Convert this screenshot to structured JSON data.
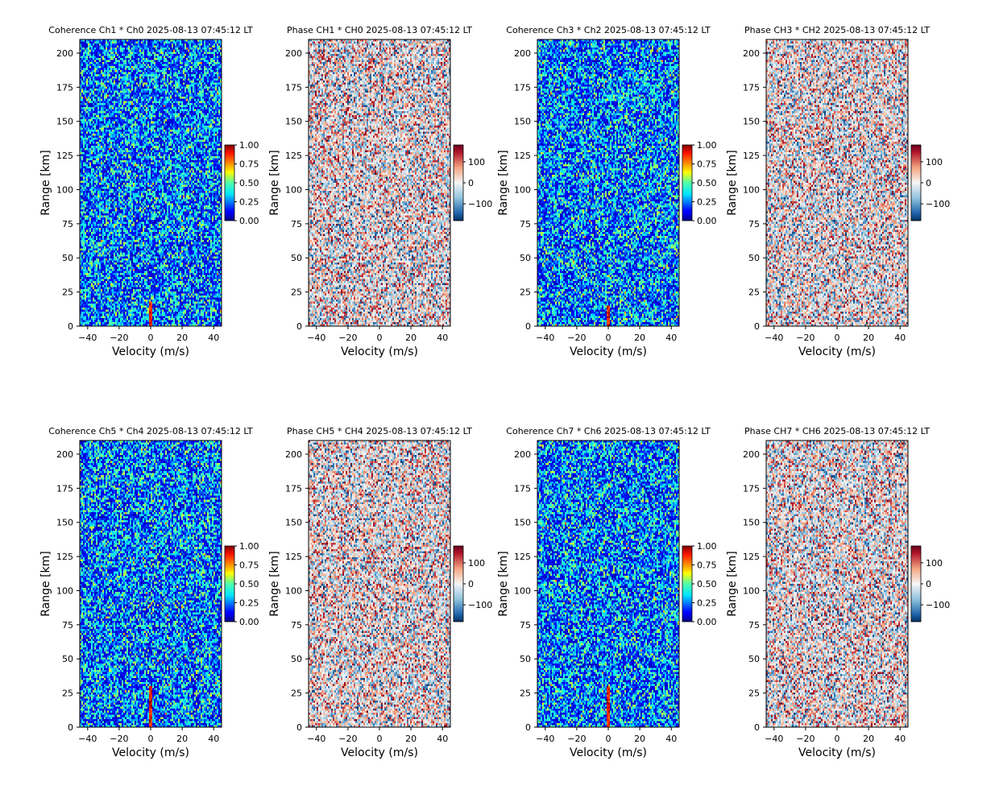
{
  "chart_data": [
    {
      "type": "heatmap",
      "kind": "coherence",
      "title": "Coherence Ch1 * Ch0 2025-08-13 07:45:12 LT",
      "xlabel": "Velocity (m/s)",
      "ylabel": "Range [km]",
      "xlim": [
        -45,
        45
      ],
      "ylim": [
        0,
        210
      ],
      "xticks": [
        "−40",
        "−20",
        "0",
        "20",
        "40"
      ],
      "yticks": [
        "0",
        "25",
        "50",
        "75",
        "100",
        "125",
        "150",
        "175",
        "200"
      ],
      "colorbar": {
        "range": [
          0,
          1
        ],
        "ticks": [
          "0.00",
          "0.25",
          "0.50",
          "0.75",
          "1.00"
        ],
        "colormap": "jet"
      },
      "peak_near_zero_velocity_km": [
        0,
        18
      ],
      "seed": 11
    },
    {
      "type": "heatmap",
      "kind": "phase",
      "title": "Phase CH1 * CH0 2025-08-13 07:45:12 LT",
      "xlabel": "Velocity (m/s)",
      "ylabel": "Range [km]",
      "xlim": [
        -45,
        45
      ],
      "ylim": [
        0,
        210
      ],
      "xticks": [
        "−40",
        "−20",
        "0",
        "20",
        "40"
      ],
      "yticks": [
        "0",
        "25",
        "50",
        "75",
        "100",
        "125",
        "150",
        "175",
        "200"
      ],
      "colorbar": {
        "range": [
          -180,
          180
        ],
        "ticks": [
          "−100",
          "0",
          "100"
        ],
        "colormap": "RdBu_r"
      },
      "seed": 23
    },
    {
      "type": "heatmap",
      "kind": "coherence",
      "title": "Coherence Ch3 * Ch2 2025-08-13 07:45:12 LT",
      "xlabel": "Velocity (m/s)",
      "ylabel": "Range [km]",
      "xlim": [
        -45,
        45
      ],
      "ylim": [
        0,
        210
      ],
      "xticks": [
        "−40",
        "−20",
        "0",
        "20",
        "40"
      ],
      "yticks": [
        "0",
        "25",
        "50",
        "75",
        "100",
        "125",
        "150",
        "175",
        "200"
      ],
      "colorbar": {
        "range": [
          0,
          1
        ],
        "ticks": [
          "0.00",
          "0.25",
          "0.50",
          "0.75",
          "1.00"
        ],
        "colormap": "jet"
      },
      "peak_near_zero_velocity_km": [
        0,
        15
      ],
      "seed": 37
    },
    {
      "type": "heatmap",
      "kind": "phase",
      "title": "Phase CH3 * CH2 2025-08-13 07:45:12 LT",
      "xlabel": "Velocity (m/s)",
      "ylabel": "Range [km]",
      "xlim": [
        -45,
        45
      ],
      "ylim": [
        0,
        210
      ],
      "xticks": [
        "−40",
        "−20",
        "0",
        "20",
        "40"
      ],
      "yticks": [
        "0",
        "25",
        "50",
        "75",
        "100",
        "125",
        "150",
        "175",
        "200"
      ],
      "colorbar": {
        "range": [
          -180,
          180
        ],
        "ticks": [
          "−100",
          "0",
          "100"
        ],
        "colormap": "RdBu_r"
      },
      "seed": 41
    },
    {
      "type": "heatmap",
      "kind": "coherence",
      "title": "Coherence Ch5 * Ch4 2025-08-13 07:45:12 LT",
      "xlabel": "Velocity (m/s)",
      "ylabel": "Range [km]",
      "xlim": [
        -45,
        45
      ],
      "ylim": [
        0,
        210
      ],
      "xticks": [
        "−40",
        "−20",
        "0",
        "20",
        "40"
      ],
      "yticks": [
        "0",
        "25",
        "50",
        "75",
        "100",
        "125",
        "150",
        "175",
        "200"
      ],
      "colorbar": {
        "range": [
          0,
          1
        ],
        "ticks": [
          "0.00",
          "0.25",
          "0.50",
          "0.75",
          "1.00"
        ],
        "colormap": "jet"
      },
      "peak_near_zero_velocity_km": [
        0,
        30
      ],
      "seed": 53
    },
    {
      "type": "heatmap",
      "kind": "phase",
      "title": "Phase CH5 * CH4 2025-08-13 07:45:12 LT",
      "xlabel": "Velocity (m/s)",
      "ylabel": "Range [km]",
      "xlim": [
        -45,
        45
      ],
      "ylim": [
        0,
        210
      ],
      "xticks": [
        "−40",
        "−20",
        "0",
        "20",
        "40"
      ],
      "yticks": [
        "0",
        "25",
        "50",
        "75",
        "100",
        "125",
        "150",
        "175",
        "200"
      ],
      "colorbar": {
        "range": [
          -180,
          180
        ],
        "ticks": [
          "−100",
          "0",
          "100"
        ],
        "colormap": "RdBu_r"
      },
      "seed": 67
    },
    {
      "type": "heatmap",
      "kind": "coherence",
      "title": "Coherence Ch7 * Ch6 2025-08-13 07:45:12 LT",
      "xlabel": "Velocity (m/s)",
      "ylabel": "Range [km]",
      "xlim": [
        -45,
        45
      ],
      "ylim": [
        0,
        210
      ],
      "xticks": [
        "−40",
        "−20",
        "0",
        "20",
        "40"
      ],
      "yticks": [
        "0",
        "25",
        "50",
        "75",
        "100",
        "125",
        "150",
        "175",
        "200"
      ],
      "colorbar": {
        "range": [
          0,
          1
        ],
        "ticks": [
          "0.00",
          "0.25",
          "0.50",
          "0.75",
          "1.00"
        ],
        "colormap": "jet"
      },
      "peak_near_zero_velocity_km": [
        0,
        30
      ],
      "seed": 79
    },
    {
      "type": "heatmap",
      "kind": "phase",
      "title": "Phase CH7 * CH6 2025-08-13 07:45:12 LT",
      "xlabel": "Velocity (m/s)",
      "ylabel": "Range [km]",
      "xlim": [
        -45,
        45
      ],
      "ylim": [
        0,
        210
      ],
      "xticks": [
        "−40",
        "−20",
        "0",
        "20",
        "40"
      ],
      "yticks": [
        "0",
        "25",
        "50",
        "75",
        "100",
        "125",
        "150",
        "175",
        "200"
      ],
      "colorbar": {
        "range": [
          -180,
          180
        ],
        "ticks": [
          "−100",
          "0",
          "100"
        ],
        "colormap": "RdBu_r"
      },
      "seed": 97
    }
  ]
}
